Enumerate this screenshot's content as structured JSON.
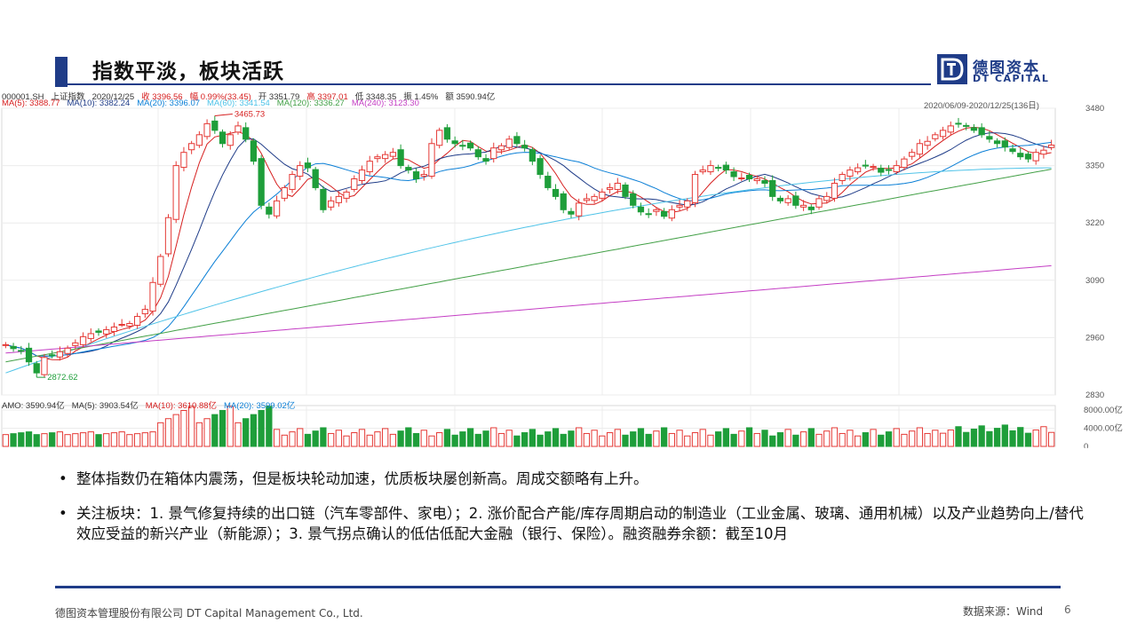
{
  "header": {
    "title": "指数平淡，板块活跃",
    "logo_cn": "德图资本",
    "logo_en": "DT CAPITAL"
  },
  "chart_header": {
    "line1": [
      {
        "text": "000001.SH",
        "color": "#333333"
      },
      {
        "text": "上证指数",
        "color": "#333333"
      },
      {
        "text": "2020/12/25",
        "color": "#333333"
      },
      {
        "text": "收 3396.56",
        "color": "#d61f1f"
      },
      {
        "text": "幅 0.99%(33.45)",
        "color": "#d61f1f"
      },
      {
        "text": "开 3351.79",
        "color": "#333333"
      },
      {
        "text": "高 3397.01",
        "color": "#d61f1f"
      },
      {
        "text": "低 3348.35",
        "color": "#333333"
      },
      {
        "text": "振 1.45%",
        "color": "#333333"
      },
      {
        "text": "额 3590.94亿",
        "color": "#333333"
      }
    ],
    "line2": [
      {
        "text": "MA(5): 3388.77",
        "color": "#d61f1f"
      },
      {
        "text": "MA(10): 3382.24",
        "color": "#1f3c88"
      },
      {
        "text": "MA(20): 3396.07",
        "color": "#0b7fd6"
      },
      {
        "text": "MA(60): 3341.54",
        "color": "#4fc3e8"
      },
      {
        "text": "MA(120): 3336.27",
        "color": "#43a047"
      },
      {
        "text": "MA(240): 3123.30",
        "color": "#c43ec4"
      }
    ],
    "range": "2020/06/09-2020/12/25(136日)",
    "vol_line": [
      {
        "text": "AMO: 3590.94亿",
        "color": "#333333"
      },
      {
        "text": "MA(5): 3903.54亿",
        "color": "#333333"
      },
      {
        "text": "MA(10): 3610.88亿",
        "color": "#d61f1f"
      },
      {
        "text": "MA(20): 3599.02亿",
        "color": "#0b7fd6"
      }
    ]
  },
  "chart_data": {
    "type": "candlestick",
    "title": "上证指数",
    "x_range": [
      "2020/06/09",
      "2020/12/25"
    ],
    "num_bars": 136,
    "y_ticks": [
      2830,
      2960,
      3090,
      3220,
      3350,
      3480
    ],
    "ylim": [
      2830,
      3480
    ],
    "annotations": [
      {
        "text": "3465.73",
        "kind": "high"
      },
      {
        "text": "2872.62",
        "kind": "low"
      }
    ],
    "closes": [
      2944,
      2935,
      2930,
      2905,
      2880,
      2915,
      2920,
      2928,
      2936,
      2948,
      2962,
      2969,
      2972,
      2978,
      2984,
      2990,
      2992,
      3008,
      3024,
      3085,
      3144,
      3232,
      3350,
      3380,
      3400,
      3420,
      3445,
      3430,
      3400,
      3420,
      3440,
      3410,
      3360,
      3260,
      3240,
      3270,
      3300,
      3330,
      3350,
      3345,
      3300,
      3250,
      3270,
      3280,
      3290,
      3320,
      3340,
      3360,
      3370,
      3375,
      3380,
      3350,
      3340,
      3320,
      3330,
      3400,
      3430,
      3410,
      3400,
      3395,
      3390,
      3370,
      3360,
      3390,
      3395,
      3410,
      3400,
      3390,
      3360,
      3330,
      3300,
      3280,
      3250,
      3240,
      3265,
      3275,
      3280,
      3290,
      3300,
      3310,
      3280,
      3260,
      3245,
      3240,
      3250,
      3235,
      3250,
      3260,
      3270,
      3330,
      3340,
      3350,
      3345,
      3340,
      3325,
      3322,
      3320,
      3320,
      3310,
      3280,
      3270,
      3275,
      3260,
      3260,
      3250,
      3275,
      3280,
      3310,
      3330,
      3340,
      3345,
      3350,
      3348,
      3335,
      3340,
      3350,
      3365,
      3380,
      3400,
      3405,
      3420,
      3430,
      3440,
      3445,
      3440,
      3430,
      3420,
      3410,
      3400,
      3392,
      3382,
      3370,
      3365,
      3380,
      3385,
      3396.56
    ],
    "series": [
      {
        "name": "MA(5)",
        "color": "#d61f1f"
      },
      {
        "name": "MA(10)",
        "color": "#1f3c88"
      },
      {
        "name": "MA(20)",
        "color": "#0b7fd6"
      },
      {
        "name": "MA(60)",
        "color": "#4fc3e8"
      },
      {
        "name": "MA(120)",
        "color": "#43a047"
      },
      {
        "name": "MA(240)",
        "color": "#c43ec4"
      }
    ],
    "volume": {
      "y_ticks_labels": [
        "8000.00亿",
        "4000.00亿",
        "0"
      ],
      "ylim": [
        0,
        8000
      ]
    }
  },
  "bullets": [
    "整体指数仍在箱体内震荡，但是板块轮动加速，优质板块屡创新高。周成交额略有上升。",
    "关注板块：1. 景气修复持续的出口链（汽车零部件、家电）；2. 涨价配合产能/库存周期启动的制造业（工业金属、玻璃、通用机械）以及产业趋势向上/替代效应受益的新兴产业（新能源）；3. 景气拐点确认的低估低配大金融（银行、保险）。融资融券余额：截至10月"
  ],
  "footer": {
    "company": "德图资本管理股份有限公司 DT Capital Management Co., Ltd.",
    "source": "数据来源：Wind",
    "page": "6"
  }
}
